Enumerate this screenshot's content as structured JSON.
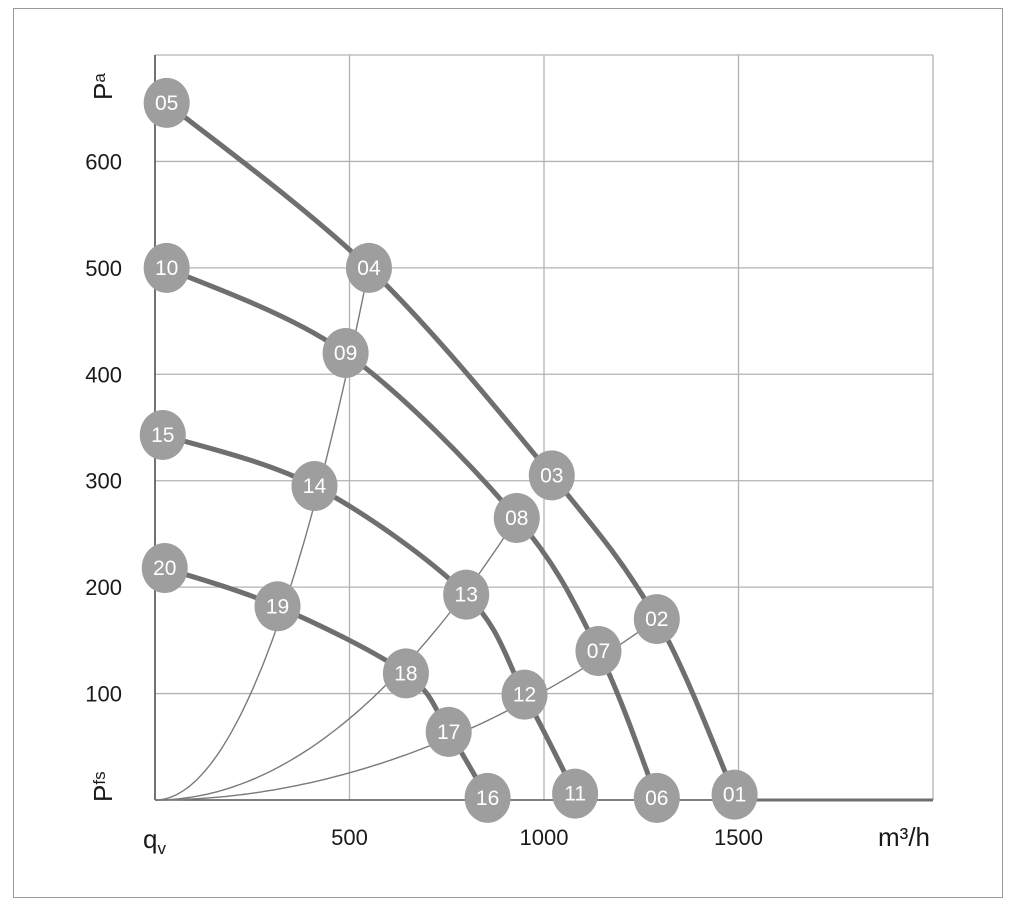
{
  "chart_data": {
    "type": "line",
    "x_unit": "m³/h",
    "x_axis_symbol": "q",
    "x_axis_symbol_sub": "v",
    "y_axis_symbol_top": "P",
    "y_axis_symbol_top_sub": "a",
    "y_axis_symbol_bottom": "P",
    "y_axis_symbol_bottom_sub": "fs",
    "xlim": [
      0,
      2000
    ],
    "ylim": [
      0,
      700
    ],
    "x_ticks": [
      500,
      1000,
      1500
    ],
    "y_ticks": [
      100,
      200,
      300,
      400,
      500,
      600
    ],
    "grid": true,
    "colors": {
      "fan_curve": "#6f6f6f",
      "system_curve": "#7a7a7a",
      "marker": "#9e9e9e",
      "marker_text": "#ffffff",
      "grid": "#b3b3b3"
    },
    "fan_curves": [
      {
        "points": [
          "05",
          "04",
          "03",
          "02",
          "01"
        ]
      },
      {
        "points": [
          "10",
          "09",
          "08",
          "07",
          "06"
        ]
      },
      {
        "points": [
          "15",
          "14",
          "13",
          "12",
          "11"
        ]
      },
      {
        "points": [
          "20",
          "19",
          "18",
          "17",
          "16"
        ]
      }
    ],
    "system_curves": [
      {
        "points": [
          "04",
          "09",
          "14",
          "19"
        ]
      },
      {
        "points": [
          "08",
          "13",
          "18"
        ]
      },
      {
        "points": [
          "02",
          "07",
          "12",
          "17"
        ]
      }
    ],
    "points": [
      {
        "label": "05",
        "x": 30,
        "y": 655
      },
      {
        "label": "04",
        "x": 550,
        "y": 500
      },
      {
        "label": "03",
        "x": 1020,
        "y": 305
      },
      {
        "label": "02",
        "x": 1290,
        "y": 170
      },
      {
        "label": "01",
        "x": 1490,
        "y": 5
      },
      {
        "label": "10",
        "x": 30,
        "y": 500
      },
      {
        "label": "09",
        "x": 490,
        "y": 420
      },
      {
        "label": "08",
        "x": 930,
        "y": 265
      },
      {
        "label": "07",
        "x": 1140,
        "y": 140
      },
      {
        "label": "06",
        "x": 1290,
        "y": 2
      },
      {
        "label": "15",
        "x": 20,
        "y": 343
      },
      {
        "label": "14",
        "x": 410,
        "y": 295
      },
      {
        "label": "13",
        "x": 800,
        "y": 193
      },
      {
        "label": "12",
        "x": 950,
        "y": 99
      },
      {
        "label": "11",
        "x": 1080,
        "y": 6
      },
      {
        "label": "20",
        "x": 25,
        "y": 218
      },
      {
        "label": "19",
        "x": 315,
        "y": 182
      },
      {
        "label": "18",
        "x": 645,
        "y": 119
      },
      {
        "label": "17",
        "x": 755,
        "y": 64
      },
      {
        "label": "16",
        "x": 855,
        "y": 2
      }
    ]
  }
}
